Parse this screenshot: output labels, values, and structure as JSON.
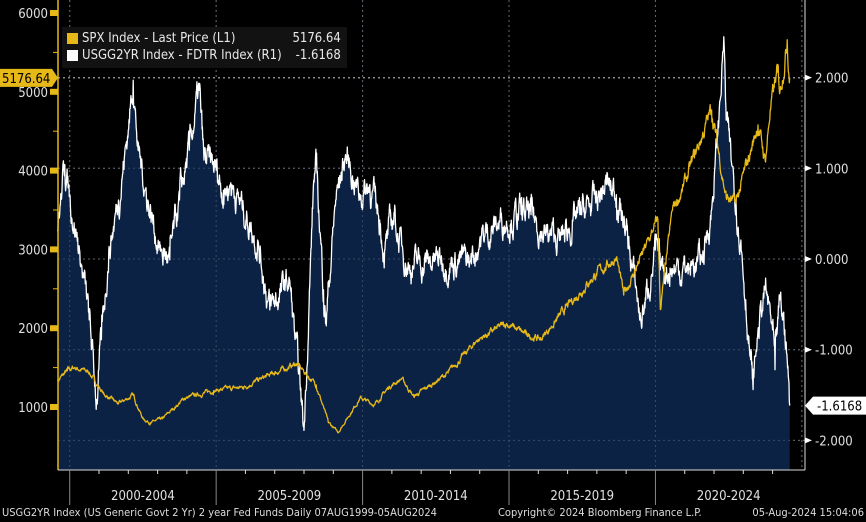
{
  "chart_data": {
    "type": "line",
    "legend_placement": "top-left",
    "grid": true,
    "x_range": [
      "1999-08-07",
      "2024-08-05"
    ],
    "x_tick_labels": [
      "2000-2004",
      "2005-2009",
      "2010-2014",
      "2015-2019",
      "2020-2024"
    ],
    "left_axis": {
      "ylim": [
        200,
        6200
      ],
      "ticks": [
        1000,
        2000,
        3000,
        4000,
        5000,
        6000
      ],
      "tick_labels": [
        "1000",
        "2000",
        "3000",
        "4000",
        "5000",
        "6000"
      ]
    },
    "right_axis": {
      "ylim": [
        -2.3,
        2.85
      ],
      "ticks": [
        -2,
        -1,
        0,
        1,
        2
      ],
      "tick_labels": [
        "-2.000",
        "-1.000",
        "0.000",
        "1.000",
        "2.000"
      ]
    },
    "series": [
      {
        "name": "SPX Index - Last Price (L1)",
        "last_value": "5176.64",
        "axis": "left",
        "color": "#e6b818",
        "points": [
          [
            "1999-08",
            1330
          ],
          [
            "1999-12",
            1460
          ],
          [
            "2000-03",
            1500
          ],
          [
            "2000-09",
            1440
          ],
          [
            "2001-03",
            1160
          ],
          [
            "2001-09",
            1040
          ],
          [
            "2002-03",
            1150
          ],
          [
            "2002-07",
            850
          ],
          [
            "2002-10",
            800
          ],
          [
            "2003-03",
            850
          ],
          [
            "2003-12",
            1110
          ],
          [
            "2004-12",
            1210
          ],
          [
            "2005-12",
            1250
          ],
          [
            "2006-12",
            1420
          ],
          [
            "2007-10",
            1550
          ],
          [
            "2008-06",
            1280
          ],
          [
            "2008-11",
            800
          ],
          [
            "2009-03",
            680
          ],
          [
            "2009-12",
            1115
          ],
          [
            "2010-06",
            1030
          ],
          [
            "2010-12",
            1260
          ],
          [
            "2011-05",
            1360
          ],
          [
            "2011-10",
            1130
          ],
          [
            "2012-12",
            1430
          ],
          [
            "2013-12",
            1850
          ],
          [
            "2014-12",
            2060
          ],
          [
            "2015-08",
            1920
          ],
          [
            "2016-02",
            1860
          ],
          [
            "2016-12",
            2240
          ],
          [
            "2017-12",
            2670
          ],
          [
            "2018-09",
            2900
          ],
          [
            "2018-12",
            2420
          ],
          [
            "2019-12",
            3230
          ],
          [
            "2020-02",
            3380
          ],
          [
            "2020-03",
            2240
          ],
          [
            "2020-08",
            3500
          ],
          [
            "2020-12",
            3750
          ],
          [
            "2021-12",
            4770
          ],
          [
            "2022-06",
            3660
          ],
          [
            "2022-10",
            3580
          ],
          [
            "2023-07",
            4580
          ],
          [
            "2023-10",
            4120
          ],
          [
            "2023-12",
            4770
          ],
          [
            "2024-03",
            5250
          ],
          [
            "2024-04",
            5000
          ],
          [
            "2024-07",
            5660
          ],
          [
            "2024-08",
            5176.64
          ]
        ]
      },
      {
        "name": "USGG2YR Index - FDTR Index (R1)",
        "last_value": "-1.6168",
        "axis": "right",
        "color": "#ffffff",
        "fill": "#0c2244",
        "points": [
          [
            "1999-08",
            0.32
          ],
          [
            "1999-11",
            1.04
          ],
          [
            "2000-01",
            0.71
          ],
          [
            "2000-05",
            0.1
          ],
          [
            "2000-09",
            -0.67
          ],
          [
            "2000-12",
            -1.55
          ],
          [
            "2001-02",
            -0.89
          ],
          [
            "2001-05",
            0.1
          ],
          [
            "2001-09",
            0.65
          ],
          [
            "2002-01",
            1.42
          ],
          [
            "2002-03",
            1.97
          ],
          [
            "2002-05",
            1.2
          ],
          [
            "2002-09",
            0.65
          ],
          [
            "2003-02",
            0.1
          ],
          [
            "2003-06",
            -0.01
          ],
          [
            "2003-10",
            0.65
          ],
          [
            "2004-02",
            1.2
          ],
          [
            "2004-06",
            1.86
          ],
          [
            "2004-08",
            1.09
          ],
          [
            "2005-01",
            0.98
          ],
          [
            "2005-04",
            0.76
          ],
          [
            "2005-07",
            0.84
          ],
          [
            "2006-06",
            0.21
          ],
          [
            "2006-11",
            -0.56
          ],
          [
            "2007-07",
            -0.23
          ],
          [
            "2007-09",
            -0.78
          ],
          [
            "2008-01",
            -1.89
          ],
          [
            "2008-05",
            0.87
          ],
          [
            "2008-06",
            1.04
          ],
          [
            "2008-09",
            -0.34
          ],
          [
            "2008-10",
            -0.67
          ],
          [
            "2009-02",
            0.65
          ],
          [
            "2009-06",
            1.15
          ],
          [
            "2009-12",
            0.71
          ],
          [
            "2010-04",
            0.82
          ],
          [
            "2010-08",
            0.43
          ],
          [
            "2010-10",
            0.1
          ],
          [
            "2011-02",
            0.49
          ],
          [
            "2011-04",
            0.21
          ],
          [
            "2011-08",
            -0.07
          ],
          [
            "2012-09",
            -0.01
          ],
          [
            "2013-09",
            -0.03
          ],
          [
            "2014-01",
            0.21
          ],
          [
            "2014-10",
            0.43
          ],
          [
            "2015-06",
            0.49
          ],
          [
            "2015-10",
            0.49
          ],
          [
            "2016-04",
            0.26
          ],
          [
            "2016-10",
            0.21
          ],
          [
            "2017-06",
            0.49
          ],
          [
            "2018-01",
            0.65
          ],
          [
            "2018-05",
            0.82
          ],
          [
            "2018-09",
            0.71
          ],
          [
            "2019-01",
            0.32
          ],
          [
            "2019-03",
            -0.01
          ],
          [
            "2019-07",
            -0.67
          ],
          [
            "2019-09",
            -0.45
          ],
          [
            "2020-01",
            0.1
          ],
          [
            "2020-03",
            -0.12
          ],
          [
            "2020-07",
            -0.1
          ],
          [
            "2021-03",
            -0.1
          ],
          [
            "2021-08",
            -0.01
          ],
          [
            "2021-12",
            0.54
          ],
          [
            "2022-03",
            1.53
          ],
          [
            "2022-05",
            2.45
          ],
          [
            "2022-06",
            1.53
          ],
          [
            "2022-08",
            1.09
          ],
          [
            "2022-10",
            0.65
          ],
          [
            "2022-12",
            0.21
          ],
          [
            "2023-02",
            -0.45
          ],
          [
            "2023-04",
            -1.11
          ],
          [
            "2023-05",
            -1.44
          ],
          [
            "2023-07",
            -0.78
          ],
          [
            "2023-10",
            -0.34
          ],
          [
            "2024-01",
            -0.78
          ],
          [
            "2024-02",
            -1.22
          ],
          [
            "2024-04",
            -0.45
          ],
          [
            "2024-06",
            -0.78
          ],
          [
            "2024-07",
            -1.11
          ],
          [
            "2024-08",
            -1.6168
          ]
        ]
      }
    ]
  },
  "footer": {
    "description": "USGG2YR Index (US Generic Govt 2 Yr) 2 year Fed Funds  Daily 07AUG1999-05AUG2024",
    "copyright": "Copyright© 2024 Bloomberg Finance L.P.",
    "timestamp": "05-Aug-2024 15:04:06"
  }
}
